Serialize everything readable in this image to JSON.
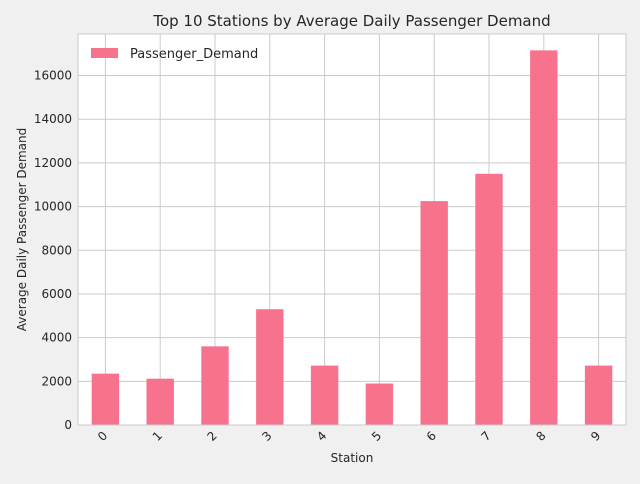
{
  "chart_data": {
    "type": "bar",
    "title": "Top 10 Stations by Average Daily Passenger Demand",
    "xlabel": "Station",
    "ylabel": "Average Daily Passenger Demand",
    "categories": [
      "0",
      "1",
      "2",
      "3",
      "4",
      "5",
      "6",
      "7",
      "8",
      "9"
    ],
    "series": [
      {
        "name": "Passenger_Demand",
        "values": [
          2350,
          2120,
          3600,
          5300,
          2720,
          1900,
          10250,
          11500,
          17150,
          2720
        ]
      }
    ],
    "ylim": [
      0,
      17900
    ],
    "yticks": [
      0,
      2000,
      4000,
      6000,
      8000,
      10000,
      12000,
      14000,
      16000
    ],
    "grid": true,
    "legend_position": "top-left",
    "colors": {
      "bar": "#f7738d",
      "plot_background": "#ffffff",
      "figure_background": "#f0f0f0",
      "grid": "#cbcbcb",
      "text": "#262626"
    }
  }
}
